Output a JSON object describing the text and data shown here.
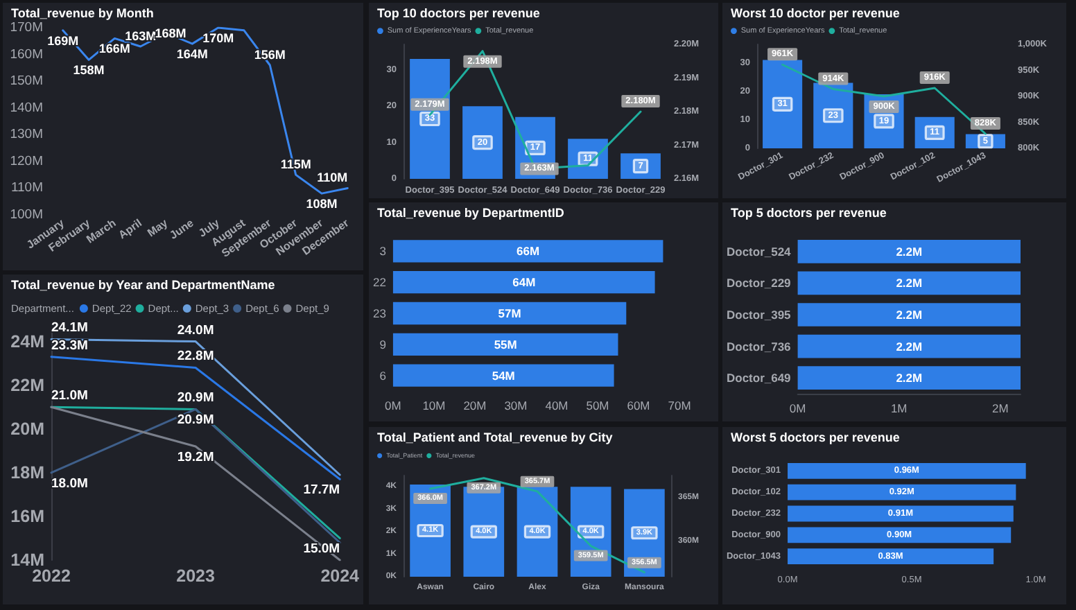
{
  "chart_data": [
    {
      "type": "line",
      "title": "Total_revenue by Month",
      "categories": [
        "January",
        "February",
        "March",
        "April",
        "May",
        "June",
        "July",
        "August",
        "September",
        "October",
        "November",
        "December"
      ],
      "values": [
        169,
        158,
        166,
        163,
        168,
        164,
        170,
        169,
        156,
        115,
        108,
        110
      ],
      "value_labels": [
        "169M",
        "158M",
        "166M",
        "163M",
        "168M",
        "164M",
        "170M",
        null,
        "156M",
        "115M",
        "108M",
        "110M"
      ],
      "color": "#3a86ee",
      "ylim": [
        100,
        170
      ],
      "yticks": [
        {
          "value": 100,
          "label": "100M"
        },
        {
          "value": 110,
          "label": "110M"
        },
        {
          "value": 120,
          "label": "120M"
        },
        {
          "value": 130,
          "label": "130M"
        },
        {
          "value": 140,
          "label": "140M"
        },
        {
          "value": 150,
          "label": "150M"
        },
        {
          "value": 160,
          "label": "160M"
        },
        {
          "value": 170,
          "label": "170M"
        }
      ]
    },
    {
      "type": "bar",
      "title": "Top 10 doctors per revenue",
      "categories": [
        "Doctor_395",
        "Doctor_524",
        "Doctor_649",
        "Doctor_736",
        "Doctor_229"
      ],
      "series": [
        {
          "name": "Sum of ExperienceYears",
          "color": "#2f7ee6",
          "values": [
            33,
            20,
            17,
            11,
            7
          ],
          "value_labels": [
            "33",
            "20",
            "17",
            "11",
            "7"
          ]
        },
        {
          "name": "Total_revenue",
          "type": "line",
          "axis": "y2",
          "color": "#1fae9e",
          "values": [
            2.179,
            2.198,
            2.163,
            2.164,
            2.18
          ],
          "value_labels": [
            "2.179M",
            "2.198M",
            "2.163M",
            null,
            "2.180M"
          ]
        }
      ],
      "ylim": [
        0,
        37
      ],
      "yticks": [
        0,
        10,
        20,
        30
      ],
      "y2lim": [
        2.16,
        2.2
      ],
      "y2ticks": [
        {
          "value": 2.16,
          "label": "2.16M"
        },
        {
          "value": 2.17,
          "label": "2.17M"
        },
        {
          "value": 2.18,
          "label": "2.18M"
        },
        {
          "value": 2.19,
          "label": "2.19M"
        },
        {
          "value": 2.2,
          "label": "2.20M"
        }
      ],
      "legend": "top left"
    },
    {
      "type": "bar",
      "title": "Worst 10 doctor per revenue",
      "categories": [
        "Doctor_301",
        "Doctor_232",
        "Doctor_900",
        "Doctor_102",
        "Doctor_1043"
      ],
      "series": [
        {
          "name": "Sum of ExperienceYears",
          "color": "#2f7ee6",
          "values": [
            31,
            23,
            19,
            11,
            5
          ],
          "value_labels": [
            "31",
            "23",
            "19",
            "11",
            "5"
          ]
        },
        {
          "name": "Total_revenue",
          "type": "line",
          "axis": "y2",
          "color": "#1fae9e",
          "values": [
            961,
            914,
            900,
            916,
            828
          ],
          "value_labels": [
            "961K",
            "914K",
            "900K",
            "916K",
            "828K"
          ]
        }
      ],
      "ylim": [
        0,
        36.5
      ],
      "yticks": [
        0,
        10,
        20,
        30
      ],
      "y2lim": [
        800,
        1000
      ],
      "y2ticks": [
        {
          "value": 800,
          "label": "800K"
        },
        {
          "value": 850,
          "label": "850K"
        },
        {
          "value": 900,
          "label": "900K"
        },
        {
          "value": 950,
          "label": "950K"
        },
        {
          "value": 1000,
          "label": "1,000K"
        }
      ],
      "legend": "top left"
    },
    {
      "type": "bar",
      "orientation": "horizontal",
      "title": "Total_revenue by DepartmentID",
      "categories": [
        "3",
        "22",
        "23",
        "9",
        "6"
      ],
      "values": [
        66,
        64,
        57,
        55,
        54
      ],
      "value_labels": [
        "66M",
        "64M",
        "57M",
        "55M",
        "54M"
      ],
      "color": "#2f7ee6",
      "xlim": [
        0,
        70
      ],
      "xticks": [
        {
          "value": 0,
          "label": "0M"
        },
        {
          "value": 10,
          "label": "10M"
        },
        {
          "value": 20,
          "label": "20M"
        },
        {
          "value": 30,
          "label": "30M"
        },
        {
          "value": 40,
          "label": "40M"
        },
        {
          "value": 50,
          "label": "50M"
        },
        {
          "value": 60,
          "label": "60M"
        },
        {
          "value": 70,
          "label": "70M"
        }
      ]
    },
    {
      "type": "bar",
      "orientation": "horizontal",
      "title": "Top 5 doctors per revenue",
      "categories": [
        "Doctor_524",
        "Doctor_229",
        "Doctor_395",
        "Doctor_736",
        "Doctor_649"
      ],
      "values": [
        2.2,
        2.2,
        2.2,
        2.2,
        2.2
      ],
      "value_labels": [
        "2.2M",
        "2.2M",
        "2.2M",
        "2.2M",
        "2.2M"
      ],
      "color": "#2f7ee6",
      "xlim": [
        0,
        2.2
      ],
      "xticks": [
        {
          "value": 0,
          "label": "0M"
        },
        {
          "value": 1,
          "label": "1M"
        },
        {
          "value": 2,
          "label": "2M"
        }
      ]
    },
    {
      "type": "line",
      "title": "Total_revenue by Year and DepartmentName",
      "legend_title": "Department...",
      "categories": [
        "2022",
        "2023",
        "2024"
      ],
      "series": [
        {
          "name": "Dept_22",
          "color": "#2a78e6",
          "values": [
            23.3,
            22.8,
            17.7
          ],
          "value_labels": [
            "23.3M",
            "22.8M",
            "17.7M"
          ]
        },
        {
          "name": "Dept...",
          "color": "#1fae9e",
          "values": [
            21.0,
            20.9,
            15.0
          ],
          "value_labels": [
            "21.0M",
            "20.9M",
            "15.0M"
          ]
        },
        {
          "name": "Dept_3",
          "color": "#6a9fdc",
          "values": [
            24.1,
            24.0,
            17.9
          ],
          "value_labels": [
            "24.1M",
            "24.0M",
            null
          ]
        },
        {
          "name": "Dept_6",
          "color": "#3f5f8a",
          "values": [
            18.0,
            20.9,
            14.8
          ],
          "value_labels": [
            "18.0M",
            "20.9M",
            null
          ]
        },
        {
          "name": "Dept_9",
          "color": "#7b808c",
          "values": [
            21.0,
            19.2,
            14.0
          ],
          "value_labels": [
            null,
            "19.2M",
            null
          ]
        }
      ],
      "ylim": [
        14,
        24.4
      ],
      "yticks": [
        {
          "value": 14,
          "label": "14M"
        },
        {
          "value": 16,
          "label": "16M"
        },
        {
          "value": 18,
          "label": "18M"
        },
        {
          "value": 20,
          "label": "20M"
        },
        {
          "value": 22,
          "label": "22M"
        },
        {
          "value": 24,
          "label": "24M"
        }
      ],
      "legend": "top left"
    },
    {
      "type": "bar",
      "title": "Total_Patient and Total_revenue by City",
      "categories": [
        "Aswan",
        "Cairo",
        "Alex",
        "Giza",
        "Mansoura"
      ],
      "series": [
        {
          "name": "Total_Patient",
          "color": "#2f7ee6",
          "values": [
            4.1,
            4.0,
            4.0,
            4.0,
            3.9
          ],
          "value_labels": [
            "4.1K",
            "4.0K",
            "4.0K",
            "4.0K",
            "3.9K"
          ]
        },
        {
          "name": "Total_revenue",
          "type": "line",
          "axis": "y2",
          "color": "#1fae9e",
          "values": [
            366.0,
            367.2,
            365.7,
            359.5,
            356.5
          ],
          "value_labels": [
            "366.0M",
            "367.2M",
            "365.7M",
            "359.5M",
            "356.5M"
          ]
        }
      ],
      "ylim": [
        0,
        4.5
      ],
      "yticks": [
        {
          "value": 0,
          "label": "0K"
        },
        {
          "value": 1,
          "label": "1K"
        },
        {
          "value": 2,
          "label": "2K"
        },
        {
          "value": 3,
          "label": "3K"
        },
        {
          "value": 4,
          "label": "4K"
        }
      ],
      "y2lim": [
        356,
        367.5
      ],
      "y2ticks": [
        {
          "value": 360,
          "label": "360M"
        },
        {
          "value": 365,
          "label": "365M"
        }
      ],
      "legend": "top left"
    },
    {
      "type": "bar",
      "orientation": "horizontal",
      "title": "Worst 5 doctors per revenue",
      "categories": [
        "Doctor_301",
        "Doctor_102",
        "Doctor_232",
        "Doctor_900",
        "Doctor_1043"
      ],
      "values": [
        0.96,
        0.92,
        0.91,
        0.9,
        0.83
      ],
      "value_labels": [
        "0.96M",
        "0.92M",
        "0.91M",
        "0.90M",
        "0.83M"
      ],
      "color": "#2f7ee6",
      "xlim": [
        0,
        1
      ],
      "xticks": [
        {
          "value": 0,
          "label": "0.0M"
        },
        {
          "value": 0.5,
          "label": "0.5M"
        },
        {
          "value": 1,
          "label": "1.0M"
        }
      ]
    }
  ]
}
